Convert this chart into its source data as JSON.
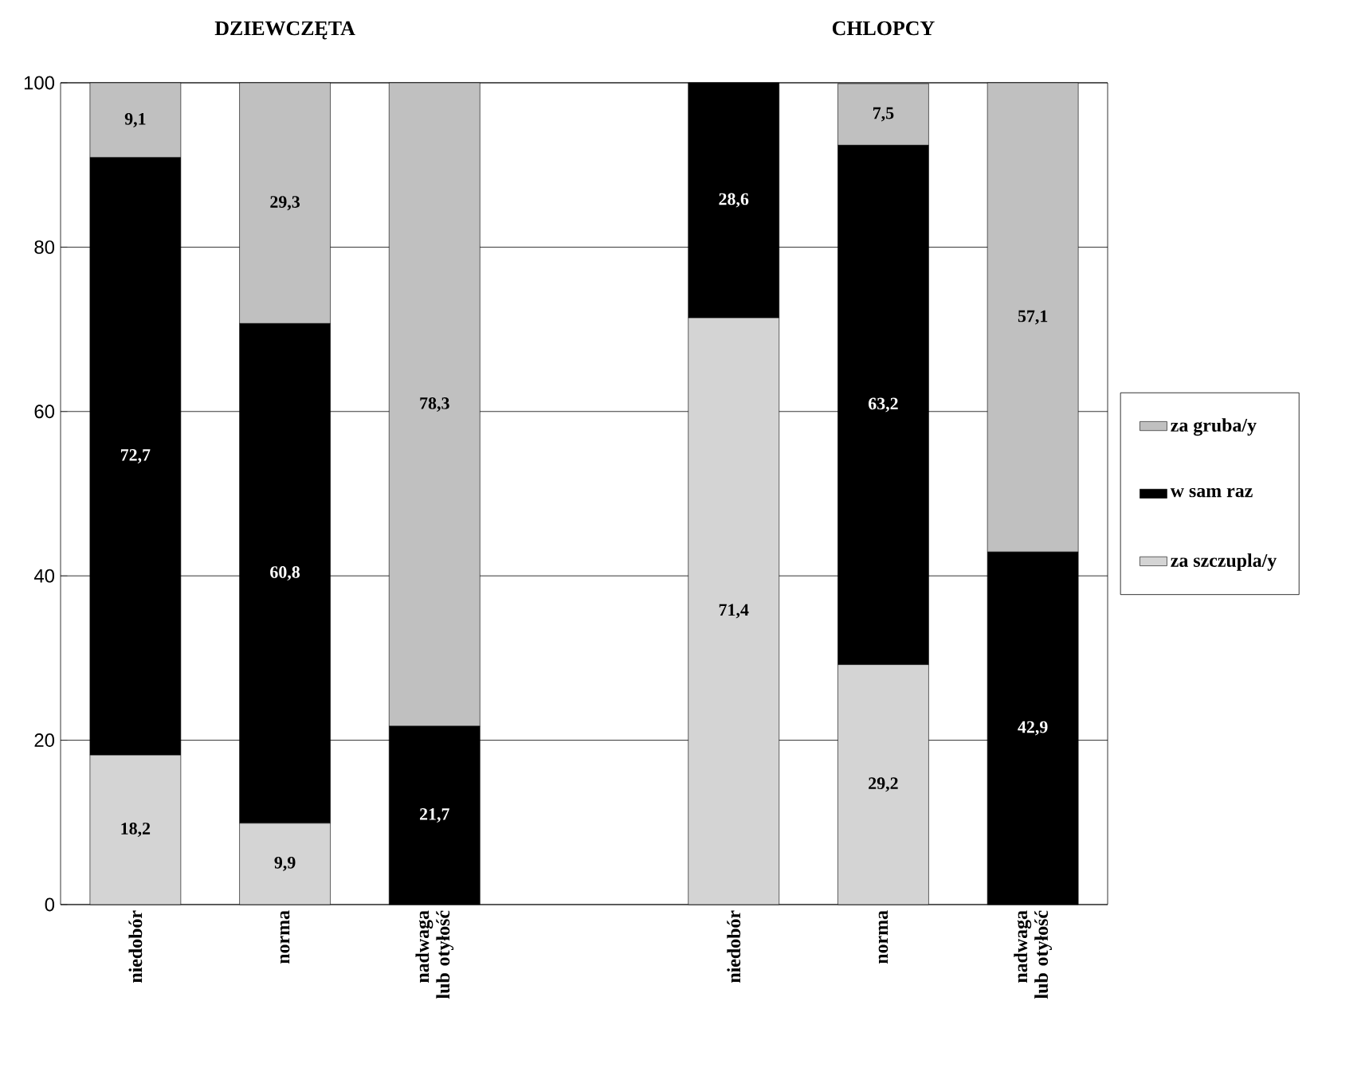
{
  "chart_data": {
    "type": "bar",
    "stacked": true,
    "annotations": [
      "DZIEWCZĘTA",
      "CHLOPCY"
    ],
    "categories": [
      "niedobór",
      "norma",
      "nadwaga lub otyłość",
      null,
      "niedobór",
      "norma",
      "nadwaga lub otyłość"
    ],
    "series": [
      {
        "name": "za szczupla/y",
        "color": "#d4d4d4",
        "values": [
          18.2,
          9.9,
          0,
          null,
          71.4,
          29.2,
          0
        ],
        "value_labels": [
          "18,2",
          "9,9",
          null,
          null,
          "71,4",
          "29,2",
          null
        ]
      },
      {
        "name": "w sam raz",
        "color": "#000000",
        "values": [
          72.7,
          60.8,
          21.7,
          null,
          28.6,
          63.2,
          42.9
        ],
        "value_labels": [
          "72,7",
          "60,8",
          "21,7",
          null,
          "28,6",
          "63,2",
          "42,9"
        ]
      },
      {
        "name": "za gruba/y",
        "color": "#c0c0c0",
        "values": [
          9.1,
          29.3,
          78.3,
          null,
          0,
          7.5,
          57.1
        ],
        "value_labels": [
          "9,1",
          "29,3",
          "78,3",
          null,
          null,
          "7,5",
          "57,1"
        ]
      }
    ],
    "ylim": [
      0,
      100
    ],
    "yticks": [
      0,
      20,
      40,
      60,
      80,
      100
    ],
    "grid": "y",
    "legend": "right"
  }
}
